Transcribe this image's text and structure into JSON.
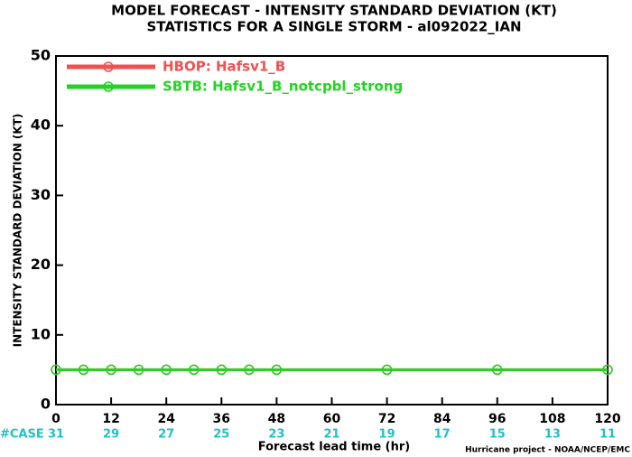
{
  "chart_data": {
    "type": "line",
    "title": "MODEL FORECAST - INTENSITY STANDARD DEVIATION (KT)",
    "subtitle": "STATISTICS FOR A SINGLE STORM - al092022_IAN",
    "x_label": "Forecast lead time (hr)",
    "y_label": "INTENSITY STANDARD DEVIATION (KT)",
    "xlim": [
      0,
      120
    ],
    "xticks": [
      0,
      12,
      24,
      36,
      48,
      60,
      72,
      84,
      96,
      108,
      120
    ],
    "ylim": [
      0,
      50
    ],
    "yticks": [
      0,
      10,
      20,
      30,
      40,
      50
    ],
    "legend": "upper left",
    "series": [
      {
        "name": "HBOP: Hafsv1_B",
        "color": "#f05050",
        "x": [
          0,
          6,
          12,
          18,
          24,
          30,
          36,
          42,
          48,
          72,
          96,
          120
        ],
        "values": [
          5,
          5,
          5,
          5,
          5,
          5,
          5,
          5,
          5,
          5,
          5,
          5
        ]
      },
      {
        "name": "SBTB: Hafsv1_B_notcpbl_strong",
        "color": "#22d322",
        "x": [
          0,
          6,
          12,
          18,
          24,
          30,
          36,
          42,
          48,
          72,
          96,
          120
        ],
        "values": [
          5,
          5,
          5,
          5,
          5,
          5,
          5,
          5,
          5,
          5,
          5,
          5
        ]
      }
    ],
    "cases": {
      "label": "#CASE",
      "color": "#20c0c8",
      "x": [
        0,
        12,
        24,
        36,
        48,
        60,
        72,
        84,
        96,
        108,
        120
      ],
      "values": [
        31,
        29,
        27,
        25,
        23,
        21,
        19,
        17,
        15,
        13,
        11
      ]
    },
    "footer": "Hurricane project - NOAA/NCEP/EMC"
  }
}
